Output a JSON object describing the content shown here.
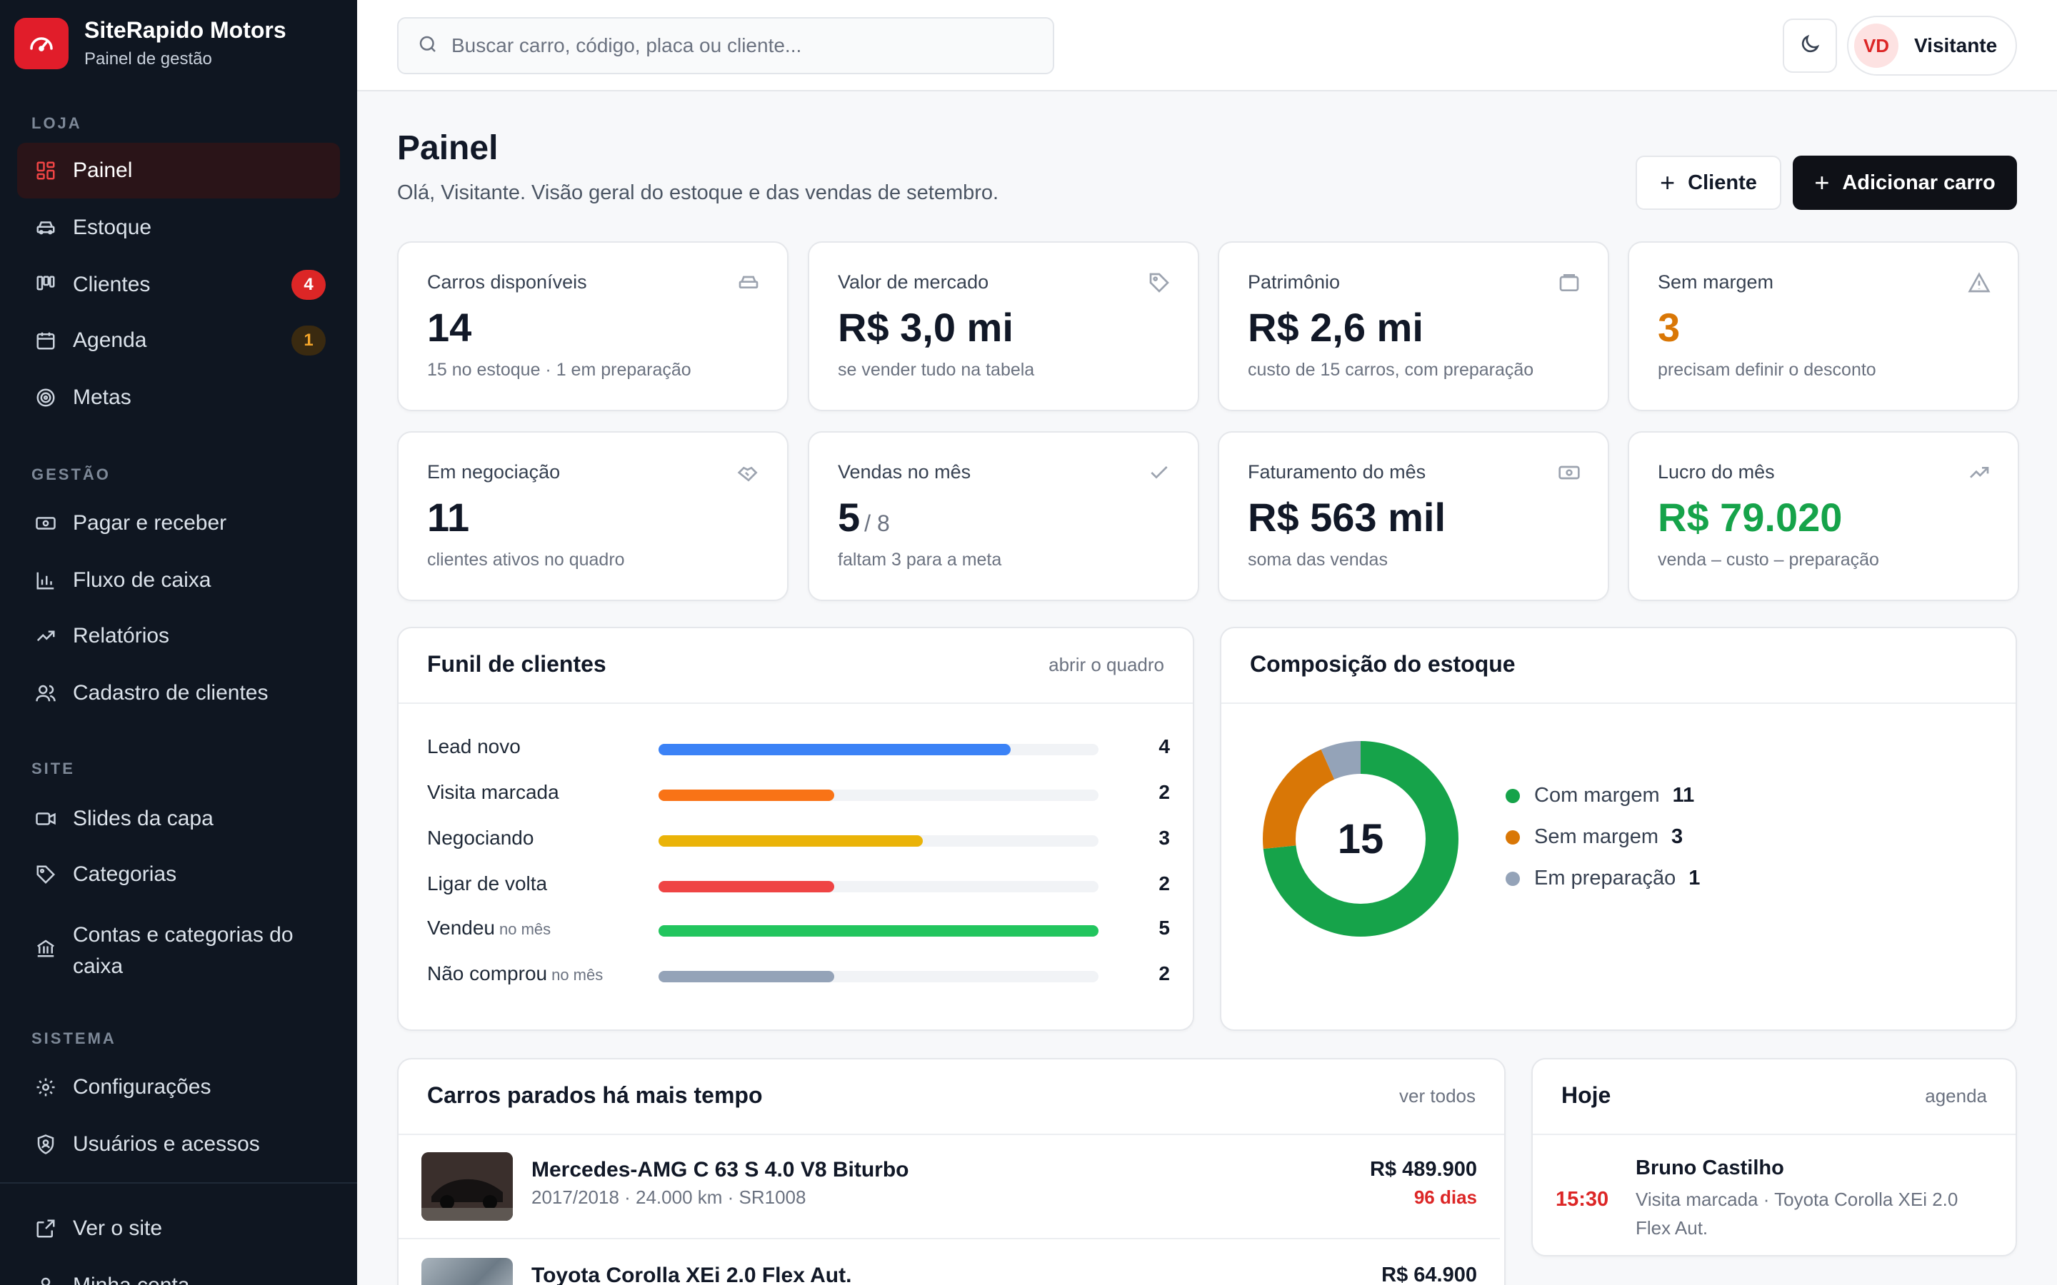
{
  "brand": {
    "title": "SiteRapido Motors",
    "subtitle": "Painel de gestão"
  },
  "colors": {
    "accent": "#e11d2a",
    "sidebar_bg": "#0f1621",
    "profit": "#16a34a",
    "warning": "#d97706"
  },
  "sidebar": {
    "sections": [
      {
        "label": "LOJA"
      },
      {
        "label": "GESTÃO"
      },
      {
        "label": "SITE"
      },
      {
        "label": "SISTEMA"
      }
    ],
    "items": [
      {
        "label": "Painel",
        "icon": "grid-icon",
        "active": true
      },
      {
        "label": "Estoque",
        "icon": "car-icon"
      },
      {
        "label": "Clientes",
        "icon": "kanban-icon",
        "badge": "4"
      },
      {
        "label": "Agenda",
        "icon": "calendar-icon",
        "badge": "1"
      },
      {
        "label": "Metas",
        "icon": "target-icon"
      },
      {
        "label": "Pagar e receber",
        "icon": "banknote-icon"
      },
      {
        "label": "Fluxo de caixa",
        "icon": "bar-chart-icon"
      },
      {
        "label": "Relatórios",
        "icon": "trending-up-icon"
      },
      {
        "label": "Cadastro de clientes",
        "icon": "users-icon"
      },
      {
        "label": "Slides da capa",
        "icon": "video-icon"
      },
      {
        "label": "Categorias",
        "icon": "tag-icon"
      },
      {
        "label": "Contas e categorias do caixa",
        "icon": "bank-icon"
      },
      {
        "label": "Configurações",
        "icon": "gear-icon"
      },
      {
        "label": "Usuários e acessos",
        "icon": "shield-user-icon"
      },
      {
        "label": "Ver o site",
        "icon": "external-link-icon"
      },
      {
        "label": "Minha conta",
        "icon": "user-icon"
      }
    ]
  },
  "topbar": {
    "search_placeholder": "Buscar carro, código, placa ou cliente...",
    "user_initials": "VD",
    "user_name": "Visitante"
  },
  "header": {
    "title": "Painel",
    "subtitle": "Olá, Visitante. Visão geral do estoque e das vendas de setembro.",
    "btn_client": "Cliente",
    "btn_add_car": "Adicionar carro"
  },
  "stats": [
    {
      "label": "Carros disponíveis",
      "value": "14",
      "note": "15 no estoque · 1 em preparação",
      "icon": "car-icon"
    },
    {
      "label": "Valor de mercado",
      "value": "R$ 3,0 mi",
      "note": "se vender tudo na tabela",
      "icon": "tag-icon"
    },
    {
      "label": "Patrimônio",
      "value": "R$ 2,6 mi",
      "note": "custo de 15 carros, com preparação",
      "icon": "wallet-icon"
    },
    {
      "label": "Sem margem",
      "value": "3",
      "note": "precisam definir o desconto",
      "icon": "warning-icon"
    },
    {
      "label": "Em negociação",
      "value": "11",
      "note": "clientes ativos no quadro",
      "icon": "handshake-icon"
    },
    {
      "label": "Vendas no mês",
      "value": "5",
      "value_suffix": "/ 8",
      "note": "faltam 3 para a meta",
      "icon": "check-icon"
    },
    {
      "label": "Faturamento do mês",
      "value": "R$ 563 mil",
      "note": "soma das vendas",
      "icon": "banknote-icon"
    },
    {
      "label": "Lucro do mês",
      "value": "R$ 79.020",
      "note": "venda – custo – preparação",
      "icon": "trending-up-icon"
    }
  ],
  "funnel": {
    "title": "Funil de clientes",
    "link": "abrir o quadro",
    "max": 5,
    "rows": [
      {
        "label": "Lead novo",
        "suffix": "",
        "count": 4,
        "color": "#3b82f6"
      },
      {
        "label": "Visita marcada",
        "suffix": "",
        "count": 2,
        "color": "#f97316"
      },
      {
        "label": "Negociando",
        "suffix": "",
        "count": 3,
        "color": "#eab308"
      },
      {
        "label": "Ligar de volta",
        "suffix": "",
        "count": 2,
        "color": "#ef4444"
      },
      {
        "label": "Vendeu",
        "suffix": "no mês",
        "count": 5,
        "color": "#22c55e"
      },
      {
        "label": "Não comprou",
        "suffix": "no mês",
        "count": 2,
        "color": "#94a3b8"
      }
    ]
  },
  "stock": {
    "title": "Composição do estoque",
    "total": "15",
    "segments": [
      {
        "label": "Com margem",
        "count": 11,
        "color": "#16a34a"
      },
      {
        "label": "Sem margem",
        "count": 3,
        "color": "#d97706"
      },
      {
        "label": "Em preparação",
        "count": 1,
        "color": "#94a3b8"
      }
    ]
  },
  "idle_cars": {
    "title": "Carros parados há mais tempo",
    "link": "ver todos",
    "rows": [
      {
        "name": "Mercedes-AMG C 63 S 4.0 V8 Biturbo",
        "meta": "2017/2018 · 24.000 km · SR1008",
        "price": "R$ 489.900",
        "days": "96 dias"
      },
      {
        "name": "Toyota Corolla XEi 2.0 Flex Aut.",
        "meta": "",
        "price": "R$ 64.900",
        "days": ""
      }
    ]
  },
  "today": {
    "title": "Hoje",
    "link": "agenda",
    "event": {
      "time": "15:30",
      "name": "Bruno Castilho",
      "desc": "Visita marcada · Toyota Corolla XEi 2.0 Flex Aut."
    }
  }
}
